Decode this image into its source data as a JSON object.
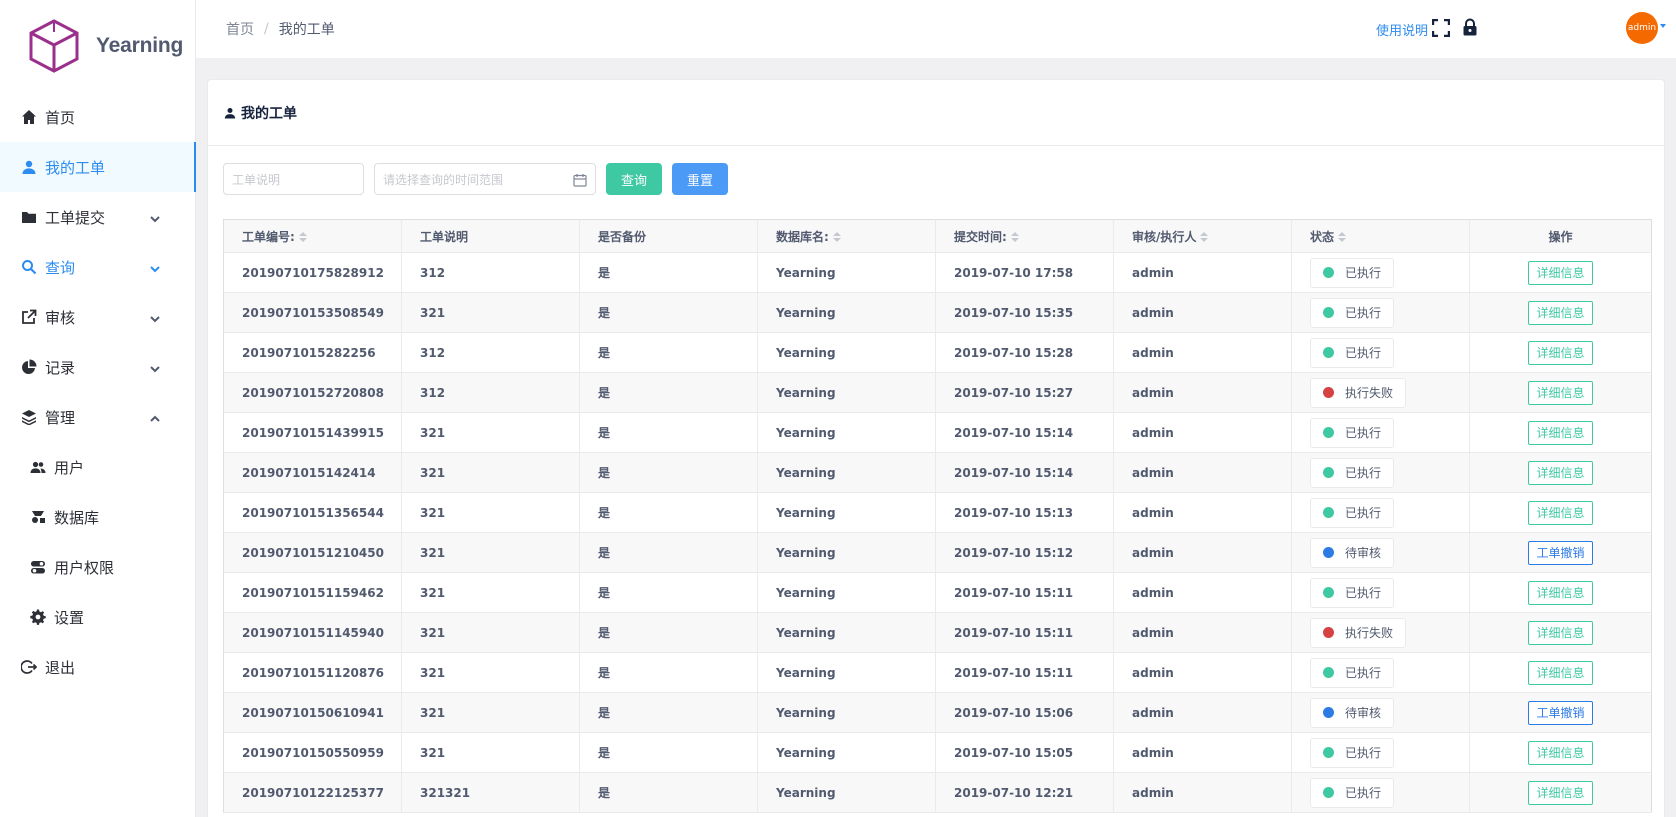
{
  "brand": {
    "name": "Yearning"
  },
  "sidebar": {
    "items": [
      {
        "label": "首页"
      },
      {
        "label": "我的工单"
      },
      {
        "label": "工单提交"
      },
      {
        "label": "查询"
      },
      {
        "label": "审核"
      },
      {
        "label": "记录"
      },
      {
        "label": "管理"
      },
      {
        "label": "用户"
      },
      {
        "label": "数据库"
      },
      {
        "label": "用户权限"
      },
      {
        "label": "设置"
      },
      {
        "label": "退出"
      }
    ]
  },
  "header": {
    "breadcrumb": [
      "首页",
      "/",
      "我的工单"
    ],
    "help_link": "使用说明",
    "avatar_text": "admin"
  },
  "card": {
    "title": "我的工单"
  },
  "filters": {
    "title_placeholder": "工单说明",
    "date_placeholder": "请选择查询的时间范围",
    "query_label": "查询",
    "reset_label": "重置"
  },
  "table": {
    "columns": [
      "工单编号:",
      "工单说明",
      "是否备份",
      "数据库名:",
      "提交时间:",
      "审核/执行人",
      "状态",
      "操作"
    ],
    "rows": [
      [
        "20190710175828912",
        "312",
        "是",
        "Yearning",
        "2019-07-10 17:58",
        "admin",
        "已执行",
        "详细信息"
      ],
      [
        "20190710153508549",
        "321",
        "是",
        "Yearning",
        "2019-07-10 15:35",
        "admin",
        "已执行",
        "详细信息"
      ],
      [
        "2019071015282256",
        "312",
        "是",
        "Yearning",
        "2019-07-10 15:28",
        "admin",
        "已执行",
        "详细信息"
      ],
      [
        "20190710152720808",
        "312",
        "是",
        "Yearning",
        "2019-07-10 15:27",
        "admin",
        "执行失败",
        "详细信息"
      ],
      [
        "20190710151439915",
        "321",
        "是",
        "Yearning",
        "2019-07-10 15:14",
        "admin",
        "已执行",
        "详细信息"
      ],
      [
        "2019071015142414",
        "321",
        "是",
        "Yearning",
        "2019-07-10 15:14",
        "admin",
        "已执行",
        "详细信息"
      ],
      [
        "20190710151356544",
        "321",
        "是",
        "Yearning",
        "2019-07-10 15:13",
        "admin",
        "已执行",
        "详细信息"
      ],
      [
        "20190710151210450",
        "321",
        "是",
        "Yearning",
        "2019-07-10 15:12",
        "admin",
        "待审核",
        "工单撤销"
      ],
      [
        "20190710151159462",
        "321",
        "是",
        "Yearning",
        "2019-07-10 15:11",
        "admin",
        "已执行",
        "详细信息"
      ],
      [
        "20190710151145940",
        "321",
        "是",
        "Yearning",
        "2019-07-10 15:11",
        "admin",
        "执行失败",
        "详细信息"
      ],
      [
        "20190710151120876",
        "321",
        "是",
        "Yearning",
        "2019-07-10 15:11",
        "admin",
        "已执行",
        "详细信息"
      ],
      [
        "20190710150610941",
        "321",
        "是",
        "Yearning",
        "2019-07-10 15:06",
        "admin",
        "待审核",
        "工单撤销"
      ],
      [
        "20190710150550959",
        "321",
        "是",
        "Yearning",
        "2019-07-10 15:05",
        "admin",
        "已执行",
        "详细信息"
      ],
      [
        "20190710122125377",
        "321321",
        "是",
        "Yearning",
        "2019-07-10 12:21",
        "admin",
        "已执行",
        "详细信息"
      ]
    ]
  },
  "colors": {
    "status_ok": "#3fc9a3",
    "status_fail": "#d64242",
    "status_wait": "#2d7be5",
    "accent": "#2d8cf0"
  }
}
